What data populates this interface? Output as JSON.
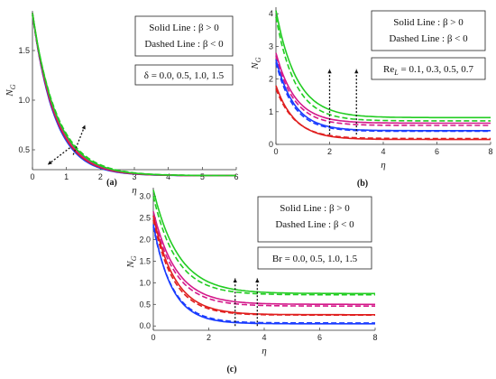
{
  "chart_data": [
    {
      "type": "line",
      "panel_label": "(a)",
      "xlabel": "η",
      "ylabel": "N",
      "ylabel_sub": "G",
      "xlim": [
        0,
        6
      ],
      "ylim": [
        0.3,
        1.9
      ],
      "xticks": [
        0,
        1,
        2,
        3,
        4,
        5,
        6
      ],
      "yticks": [
        0.5,
        1.0,
        1.5
      ],
      "ytick_labels": [
        "0.5",
        "1.0",
        "1.5"
      ],
      "legend": [
        "Solid Line : β > 0",
        "Dashed Line : β < 0"
      ],
      "annotation": "δ = 0.0, 0.5, 1.0, 1.5",
      "series": [
        {
          "color": "#1a3cff",
          "start": 1.88,
          "asym": 0.24,
          "rate": 1.55,
          "dash_start": 1.86,
          "dash_asym": 0.24,
          "dash_rate": 1.5
        },
        {
          "color": "#e01f1f",
          "start": 1.88,
          "asym": 0.24,
          "rate": 1.5,
          "dash_start": 1.86,
          "dash_asym": 0.24,
          "dash_rate": 1.45
        },
        {
          "color": "#d4188a",
          "start": 1.88,
          "asym": 0.24,
          "rate": 1.45,
          "dash_start": 1.86,
          "dash_asym": 0.24,
          "dash_rate": 1.4
        },
        {
          "color": "#22cc22",
          "start": 1.88,
          "asym": 0.24,
          "rate": 1.4,
          "dash_start": 1.86,
          "dash_asym": 0.24,
          "dash_rate": 1.35
        }
      ]
    },
    {
      "type": "line",
      "panel_label": "(b)",
      "xlabel": "η",
      "ylabel": "N",
      "ylabel_sub": "G",
      "xlim": [
        0,
        8
      ],
      "ylim": [
        0,
        4.2
      ],
      "xticks": [
        0,
        2,
        4,
        6,
        8
      ],
      "yticks": [
        0,
        1,
        2,
        3,
        4
      ],
      "ytick_labels": [
        "0",
        "1",
        "2",
        "3",
        "4"
      ],
      "legend": [
        "Solid Line : β > 0",
        "Dashed Line : β < 0"
      ],
      "annotation": "Re = 0.1, 0.3, 0.5, 0.7",
      "annotation_sub": "L",
      "series": [
        {
          "color": "#22cc22",
          "start": 4.1,
          "asym": 0.82,
          "rate": 1.3,
          "dash_start": 3.9,
          "dash_asym": 0.72,
          "dash_rate": 1.4
        },
        {
          "color": "#d4188a",
          "start": 2.8,
          "asym": 0.65,
          "rate": 1.4,
          "dash_start": 2.7,
          "dash_asym": 0.58,
          "dash_rate": 1.45
        },
        {
          "color": "#1a3cff",
          "start": 2.6,
          "asym": 0.42,
          "rate": 1.45,
          "dash_start": 2.5,
          "dash_asym": 0.4,
          "dash_rate": 1.5
        },
        {
          "color": "#e01f1f",
          "start": 1.8,
          "asym": 0.15,
          "rate": 1.4,
          "dash_start": 1.7,
          "dash_asym": 0.18,
          "dash_rate": 1.4
        }
      ]
    },
    {
      "type": "line",
      "panel_label": "(c)",
      "xlabel": "η",
      "ylabel": "N",
      "ylabel_sub": "G",
      "xlim": [
        0,
        8
      ],
      "ylim": [
        -0.1,
        3.2
      ],
      "xticks": [
        0,
        2,
        4,
        6,
        8
      ],
      "yticks": [
        0.0,
        0.5,
        1.0,
        1.5,
        2.0,
        2.5,
        3.0
      ],
      "ytick_labels": [
        "0.0",
        "0.5",
        "1.0",
        "1.5",
        "2.0",
        "2.5",
        "3.0"
      ],
      "legend": [
        "Solid Line : β > 0",
        "Dashed Line : β < 0"
      ],
      "annotation": "Br = 0.0, 0.5, 1.0, 1.5",
      "series": [
        {
          "color": "#22cc22",
          "start": 3.15,
          "asym": 0.75,
          "rate": 1.1,
          "dash_start": 3.0,
          "dash_asym": 0.72,
          "dash_rate": 1.2
        },
        {
          "color": "#d4188a",
          "start": 2.65,
          "asym": 0.5,
          "rate": 1.2,
          "dash_start": 2.55,
          "dash_asym": 0.46,
          "dash_rate": 1.25
        },
        {
          "color": "#e01f1f",
          "start": 2.55,
          "asym": 0.26,
          "rate": 1.3,
          "dash_start": 2.45,
          "dash_asym": 0.25,
          "dash_rate": 1.35
        },
        {
          "color": "#1a3cff",
          "start": 2.35,
          "asym": 0.05,
          "rate": 1.5,
          "dash_start": 2.3,
          "dash_asym": 0.07,
          "dash_rate": 1.45
        }
      ]
    }
  ]
}
